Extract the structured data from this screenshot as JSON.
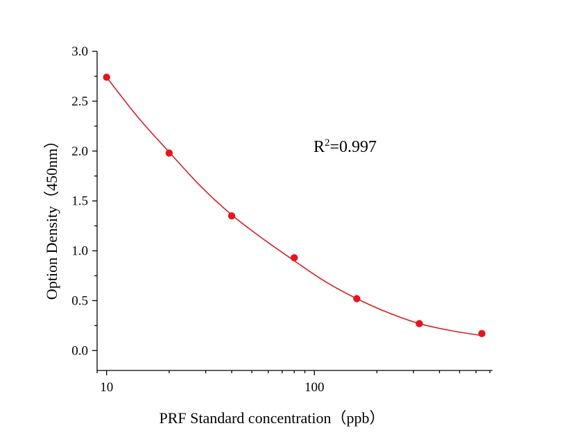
{
  "chart_data": {
    "type": "scatter",
    "title": "",
    "xlabel": "PRF Standard concentration（ppb）",
    "ylabel": "Option Density（450nm）",
    "xscale": "log",
    "xlim": [
      9,
      720
    ],
    "ylim": [
      -0.2,
      3.0
    ],
    "xticks": [
      10,
      100
    ],
    "xtick_labels": [
      "10",
      "100"
    ],
    "yticks": [
      0.0,
      0.5,
      1.0,
      1.5,
      2.0,
      2.5,
      3.0
    ],
    "ytick_labels": [
      "0.0",
      "0.5",
      "1.0",
      "1.5",
      "2.0",
      "2.5",
      "3.0"
    ],
    "grid": false,
    "annotation": {
      "base": "R",
      "sup": "2",
      "value": "=0.997"
    },
    "series": [
      {
        "points": [
          {
            "x": 10,
            "y": 2.74
          },
          {
            "x": 20,
            "y": 1.98
          },
          {
            "x": 40,
            "y": 1.35
          },
          {
            "x": 80,
            "y": 0.93
          },
          {
            "x": 160,
            "y": 0.52
          },
          {
            "x": 320,
            "y": 0.27
          },
          {
            "x": 640,
            "y": 0.17
          }
        ],
        "marker_color": "#e8141c",
        "fit_curve": [
          {
            "x": 10,
            "y": 2.74
          },
          {
            "x": 14.14,
            "y": 2.34
          },
          {
            "x": 20,
            "y": 1.99
          },
          {
            "x": 28.28,
            "y": 1.65
          },
          {
            "x": 40,
            "y": 1.36
          },
          {
            "x": 56.57,
            "y": 1.12
          },
          {
            "x": 80,
            "y": 0.9
          },
          {
            "x": 113.1,
            "y": 0.69
          },
          {
            "x": 160,
            "y": 0.52
          },
          {
            "x": 226.3,
            "y": 0.38
          },
          {
            "x": 320,
            "y": 0.27
          },
          {
            "x": 452.5,
            "y": 0.2
          },
          {
            "x": 640,
            "y": 0.15
          }
        ],
        "line_color": "#d42020"
      }
    ]
  }
}
